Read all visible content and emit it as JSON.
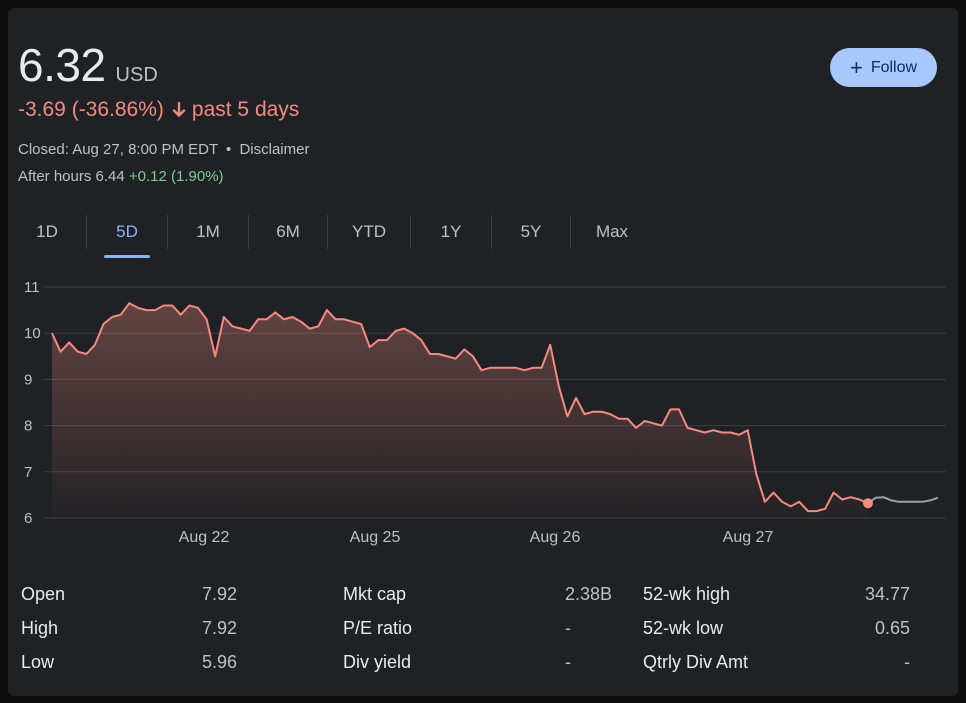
{
  "quote": {
    "price": "6.32",
    "currency": "USD",
    "change": "-3.69 (-36.86%)",
    "period": "past 5 days",
    "closed_text": "Closed: Aug 27, 8:00 PM EDT",
    "separator": "•",
    "disclaimer": "Disclaimer",
    "after_hours_label": "After hours 6.44",
    "after_hours_change": "+0.12 (1.90%)"
  },
  "follow_label": "Follow",
  "tabs": [
    "1D",
    "5D",
    "1M",
    "6M",
    "YTD",
    "1Y",
    "5Y",
    "Max"
  ],
  "active_tab": "5D",
  "colors": {
    "background": "#202124",
    "line_down": "#f28b82",
    "after_hours_line": "#9aa0a6",
    "accent": "#8ab4f8",
    "follow_bg": "#a8c7fa",
    "positive": "#81c995"
  },
  "chart_data": {
    "type": "line",
    "title": "",
    "xlabel": "",
    "ylabel": "",
    "ylim": [
      6,
      11
    ],
    "y_ticks": [
      "11",
      "10",
      "9",
      "8",
      "7",
      "6"
    ],
    "x_ticks": [
      "Aug 22",
      "Aug 25",
      "Aug 26",
      "Aug 27"
    ],
    "grid": true,
    "series": [
      {
        "values": [
          10.0,
          9.6,
          9.8,
          9.6,
          9.55,
          9.75,
          10.2,
          10.35,
          10.4,
          10.65,
          10.55,
          10.5,
          10.5,
          10.6,
          10.6,
          10.4,
          10.6,
          10.55,
          10.3,
          9.5,
          10.35,
          10.15,
          10.1,
          10.05,
          10.3,
          10.3,
          10.45,
          10.3,
          10.35,
          10.25,
          10.1,
          10.15,
          10.5,
          10.3,
          10.3,
          10.25,
          10.2,
          9.7,
          9.85,
          9.85,
          10.05,
          10.1,
          10.0,
          9.85,
          9.55,
          9.55,
          9.5,
          9.45,
          9.65,
          9.5,
          9.2,
          9.25,
          9.25,
          9.25,
          9.25,
          9.2,
          9.25,
          9.25,
          9.75,
          8.85,
          8.2,
          8.6,
          8.25,
          8.3,
          8.3,
          8.25,
          8.15,
          8.15,
          7.95,
          8.1,
          8.05,
          8.0,
          8.35,
          8.35,
          7.95,
          7.9,
          7.85,
          7.9,
          7.85,
          7.85,
          7.8,
          7.9,
          6.95,
          6.35,
          6.55,
          6.35,
          6.25,
          6.35,
          6.15,
          6.15,
          6.2,
          6.55,
          6.4,
          6.45,
          6.4,
          6.32
        ]
      },
      {
        "values": [
          6.32,
          6.44,
          6.45,
          6.38,
          6.35,
          6.35,
          6.35,
          6.35,
          6.38,
          6.44
        ]
      }
    ],
    "current_marker": 6.32
  },
  "stats": {
    "rows": [
      [
        {
          "label": "Open",
          "value": "7.92"
        },
        {
          "label": "Mkt cap",
          "value": "2.38B"
        },
        {
          "label": "52-wk high",
          "value": "34.77"
        }
      ],
      [
        {
          "label": "High",
          "value": "7.92"
        },
        {
          "label": "P/E ratio",
          "value": "-"
        },
        {
          "label": "52-wk low",
          "value": "0.65"
        }
      ],
      [
        {
          "label": "Low",
          "value": "5.96"
        },
        {
          "label": "Div yield",
          "value": "-"
        },
        {
          "label": "Qtrly Div Amt",
          "value": "-"
        }
      ]
    ]
  }
}
